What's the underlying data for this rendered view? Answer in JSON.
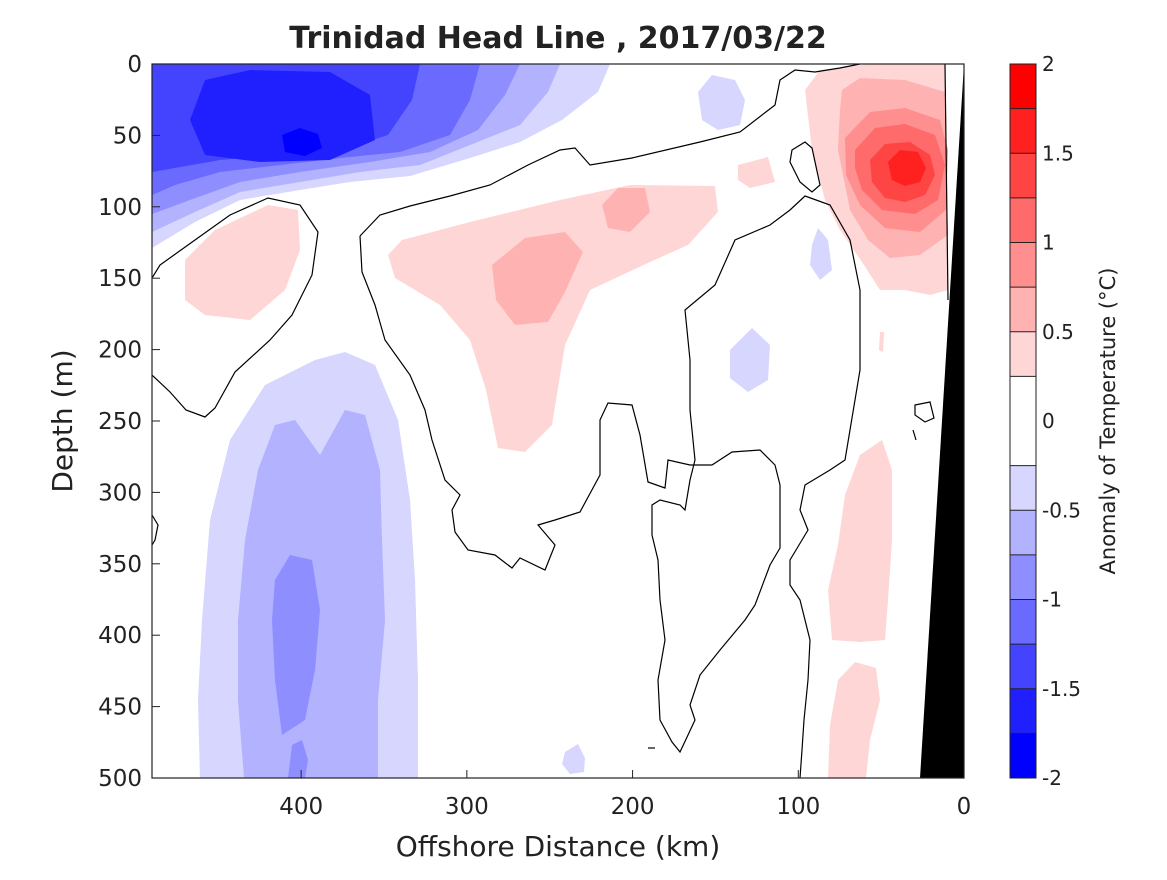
{
  "chart_data": {
    "type": "heatmap",
    "title": "Trinidad Head Line , 2017/03/22",
    "xlabel": "Offshore Distance (km)",
    "ylabel": "Depth (m)",
    "x_ticks": [
      "400",
      "300",
      "200",
      "100",
      "0"
    ],
    "x_tick_values": [
      400,
      300,
      200,
      100,
      0
    ],
    "y_ticks": [
      "0",
      "50",
      "100",
      "150",
      "200",
      "250",
      "300",
      "350",
      "400",
      "450",
      "500"
    ],
    "y_tick_values": [
      0,
      50,
      100,
      150,
      200,
      250,
      300,
      350,
      400,
      450,
      500
    ],
    "xlim": [
      490,
      0
    ],
    "ylim": [
      0,
      500
    ],
    "colorbar": {
      "label": "Anomaly of Temperature (°C)",
      "ticks": [
        "2",
        "1.5",
        "1",
        "0.5",
        "0",
        "-0.5",
        "-1",
        "-1.5",
        "-2"
      ],
      "tick_values": [
        2,
        1.5,
        1,
        0.5,
        0,
        -0.5,
        -1,
        -1.5,
        -2
      ],
      "range": [
        -2,
        2
      ],
      "levels": [
        {
          "min": 1.75,
          "max": 2.0,
          "color": "#ff0000"
        },
        {
          "min": 1.5,
          "max": 1.75,
          "color": "#ff2020"
        },
        {
          "min": 1.25,
          "max": 1.5,
          "color": "#ff4444"
        },
        {
          "min": 1.0,
          "max": 1.25,
          "color": "#ff6a6a"
        },
        {
          "min": 0.75,
          "max": 1.0,
          "color": "#ff8e8e"
        },
        {
          "min": 0.5,
          "max": 0.75,
          "color": "#ffb2b2"
        },
        {
          "min": 0.25,
          "max": 0.5,
          "color": "#ffd6d6"
        },
        {
          "min": -0.25,
          "max": 0.25,
          "color": "#ffffff"
        },
        {
          "min": -0.5,
          "max": -0.25,
          "color": "#d6d6ff"
        },
        {
          "min": -0.75,
          "max": -0.5,
          "color": "#b2b2ff"
        },
        {
          "min": -1.0,
          "max": -0.75,
          "color": "#8e8eff"
        },
        {
          "min": -1.25,
          "max": -1.0,
          "color": "#6a6aff"
        },
        {
          "min": -1.5,
          "max": -1.25,
          "color": "#4444ff"
        },
        {
          "min": -1.75,
          "max": -1.5,
          "color": "#2020ff"
        },
        {
          "min": -2.0,
          "max": -1.75,
          "color": "#0000ff"
        }
      ]
    },
    "features": [
      {
        "name": "surface cold core",
        "x_range": [
          490,
          300
        ],
        "depth_range": [
          0,
          120
        ],
        "peak_anomaly": -1.9
      },
      {
        "name": "nearshore warm core",
        "x_range": [
          80,
          10
        ],
        "depth_range": [
          0,
          160
        ],
        "peak_anomaly": 1.6
      },
      {
        "name": "mid-section warm lens",
        "x_range": [
          320,
          180
        ],
        "depth_range": [
          80,
          270
        ],
        "peak_anomaly": 0.8
      },
      {
        "name": "deep cool column",
        "x_range": [
          460,
          330
        ],
        "depth_range": [
          200,
          500
        ],
        "peak_anomaly": -0.9
      },
      {
        "name": "deep nearshore warm band",
        "x_range": [
          85,
          45
        ],
        "depth_range": [
          260,
          500
        ],
        "peak_anomaly": 0.4
      }
    ],
    "bathymetry_color": "#000000",
    "contour_line": "0 °C anomaly contour (black)",
    "grid": false
  }
}
